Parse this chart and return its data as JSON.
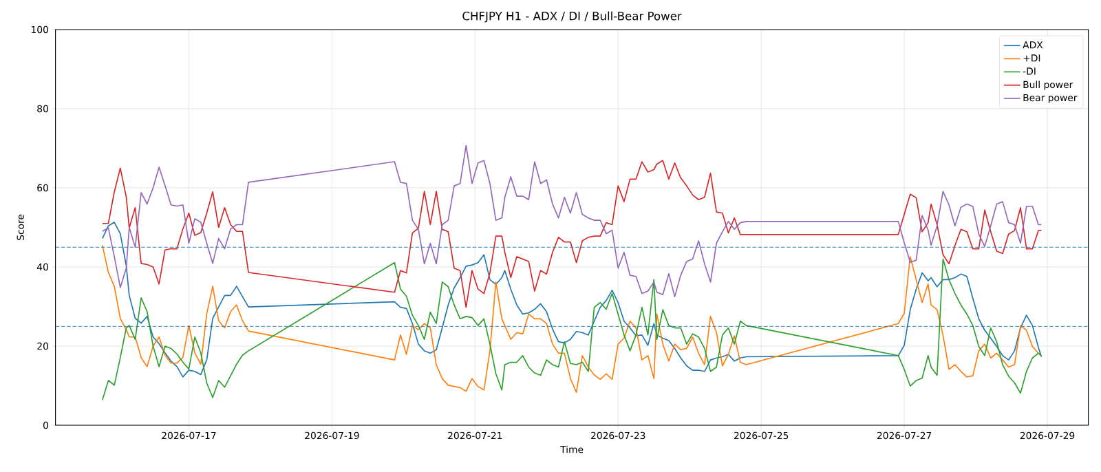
{
  "chart_data": {
    "type": "line",
    "title": "CHFJPY H1 - ADX / DI / Bull-Bear Power",
    "xlabel": "Time",
    "ylabel": "Score",
    "x": [
      "2026-07-15T19:00",
      "2026-07-15T21:00",
      "2026-07-15T23:00",
      "2026-07-16T01:00",
      "2026-07-16T03:00",
      "2026-07-16T04:00",
      "2026-07-16T06:00",
      "2026-07-16T08:00",
      "2026-07-16T10:00",
      "2026-07-16T12:00",
      "2026-07-16T14:00",
      "2026-07-16T16:00",
      "2026-07-16T18:00",
      "2026-07-16T20:00",
      "2026-07-16T22:00",
      "2026-07-17T00:00",
      "2026-07-17T02:00",
      "2026-07-17T04:00",
      "2026-07-17T06:00",
      "2026-07-17T08:00",
      "2026-07-17T10:00",
      "2026-07-17T12:00",
      "2026-07-17T14:00",
      "2026-07-17T16:00",
      "2026-07-17T18:00",
      "2026-07-17T20:00",
      "2026-07-19T21:00",
      "2026-07-19T23:00",
      "2026-07-20T01:00",
      "2026-07-20T03:00",
      "2026-07-20T05:00",
      "2026-07-20T07:00",
      "2026-07-20T09:00",
      "2026-07-20T11:00",
      "2026-07-20T13:00",
      "2026-07-20T15:00",
      "2026-07-20T17:00",
      "2026-07-20T19:00",
      "2026-07-20T21:00",
      "2026-07-20T23:00",
      "2026-07-21T01:00",
      "2026-07-21T03:00",
      "2026-07-21T05:00",
      "2026-07-21T07:00",
      "2026-07-21T09:00",
      "2026-07-21T10:00",
      "2026-07-21T12:00",
      "2026-07-21T14:00",
      "2026-07-21T16:00",
      "2026-07-21T18:00",
      "2026-07-21T20:00",
      "2026-07-21T22:00",
      "2026-07-22T00:00",
      "2026-07-22T02:00",
      "2026-07-22T04:00",
      "2026-07-22T06:00",
      "2026-07-22T08:00",
      "2026-07-22T10:00",
      "2026-07-22T12:00",
      "2026-07-22T14:00",
      "2026-07-22T16:00",
      "2026-07-22T18:00",
      "2026-07-22T20:00",
      "2026-07-22T22:00",
      "2026-07-23T00:00",
      "2026-07-23T02:00",
      "2026-07-23T04:00",
      "2026-07-23T06:00",
      "2026-07-23T08:00",
      "2026-07-23T10:00",
      "2026-07-23T12:00",
      "2026-07-23T13:00",
      "2026-07-23T15:00",
      "2026-07-23T17:00",
      "2026-07-23T19:00",
      "2026-07-23T21:00",
      "2026-07-23T23:00",
      "2026-07-24T01:00",
      "2026-07-24T03:00",
      "2026-07-24T05:00",
      "2026-07-24T07:00",
      "2026-07-24T09:00",
      "2026-07-24T11:00",
      "2026-07-24T13:00",
      "2026-07-24T15:00",
      "2026-07-24T17:00",
      "2026-07-24T19:00",
      "2026-07-26T22:00",
      "2026-07-27T00:00",
      "2026-07-27T02:00",
      "2026-07-27T04:00",
      "2026-07-27T06:00",
      "2026-07-27T08:00",
      "2026-07-27T09:00",
      "2026-07-27T11:00",
      "2026-07-27T13:00",
      "2026-07-27T15:00",
      "2026-07-27T17:00",
      "2026-07-27T19:00",
      "2026-07-27T21:00",
      "2026-07-27T23:00",
      "2026-07-28T01:00",
      "2026-07-28T03:00",
      "2026-07-28T05:00",
      "2026-07-28T07:00",
      "2026-07-28T09:00",
      "2026-07-28T11:00",
      "2026-07-28T13:00",
      "2026-07-28T15:00",
      "2026-07-28T17:00",
      "2026-07-28T19:00",
      "2026-07-28T21:00",
      "2026-07-28T22:00"
    ],
    "series": [
      {
        "name": "ADX",
        "color": "#1f77b4",
        "values": [
          47.2,
          50.4,
          51.3,
          48.4,
          40.3,
          32.8,
          27,
          25.8,
          27.5,
          22.3,
          20.6,
          18.3,
          16.2,
          14.8,
          12.2,
          13.9,
          13.6,
          12.8,
          16.5,
          27,
          29.9,
          32.8,
          32.8,
          35.1,
          32.5,
          29.9,
          31.2,
          29.8,
          29.5,
          25.7,
          20.5,
          18.8,
          18.2,
          19.1,
          24.6,
          30.4,
          34.7,
          37.3,
          40.2,
          40.5,
          41.1,
          43.1,
          36.8,
          35.6,
          37.3,
          39.1,
          34.4,
          30.4,
          28.1,
          28.4,
          29.3,
          30.7,
          28.7,
          24.3,
          21.1,
          20.8,
          21.7,
          23.7,
          23.4,
          22.8,
          26.3,
          29.8,
          31.5,
          34.1,
          31,
          26.3,
          24.6,
          22.6,
          22.8,
          20.2,
          25.7,
          22.8,
          22,
          21.4,
          19.4,
          17,
          15,
          13.9,
          13.9,
          13.6,
          16.5,
          17,
          17.3,
          17.9,
          16.2,
          17,
          17.3,
          17.6,
          20.2,
          29.2,
          34.4,
          38.5,
          36.5,
          37.3,
          35,
          36.8,
          36.8,
          37.3,
          38.2,
          37.6,
          32.1,
          26.9,
          24,
          22,
          19.9,
          17.6,
          16.5,
          18.8,
          24.6,
          27.8,
          25.2,
          19.7,
          17.3
        ]
      },
      {
        "name": "+DI",
        "color": "#ff7f0e",
        "values": [
          45.5,
          38.6,
          35.1,
          27,
          24.1,
          22.3,
          22.3,
          17.1,
          14.8,
          20,
          22.3,
          17.7,
          15.7,
          15.7,
          17.1,
          25.2,
          18.3,
          15.4,
          28.1,
          35.1,
          26.4,
          24.6,
          28.7,
          30.4,
          26.4,
          23.8,
          16.5,
          22.8,
          17.9,
          25.2,
          24.1,
          25.7,
          24.6,
          15.3,
          11.8,
          10.1,
          9.8,
          9.5,
          8.6,
          11.8,
          9.8,
          8.9,
          18.8,
          36.2,
          26.9,
          25.2,
          21.7,
          23.4,
          23.1,
          28.1,
          26.9,
          26.9,
          25.7,
          20.5,
          18.2,
          18.2,
          11.8,
          8.3,
          17.6,
          14.7,
          12.7,
          11.6,
          13,
          11.6,
          20.5,
          22,
          26.3,
          24.6,
          16.5,
          17.6,
          11.8,
          28.1,
          20.5,
          16.2,
          20.5,
          19.1,
          19.4,
          22.3,
          18.2,
          15.3,
          27.5,
          23.4,
          15,
          17.9,
          22.6,
          15.9,
          15.3,
          25.7,
          28.3,
          42.6,
          36.8,
          31,
          35.7,
          30.4,
          29.2,
          22.8,
          14.1,
          15.3,
          13.6,
          12.2,
          12.5,
          18.8,
          20.5,
          17,
          18.2,
          16.5,
          14.7,
          15.3,
          25.2,
          24,
          19.9,
          18.2,
          17.6
        ]
      },
      {
        "name": "-DI",
        "color": "#2ca02c",
        "values": [
          6.4,
          11.3,
          10.1,
          17.1,
          24.6,
          25.2,
          21.7,
          32.2,
          28.7,
          20,
          14.8,
          20,
          19.4,
          18,
          15.9,
          14.2,
          22.3,
          18.3,
          10.7,
          7,
          11.3,
          9.6,
          12.5,
          15.4,
          17.7,
          18.8,
          41.1,
          34.4,
          32.6,
          27.8,
          25.2,
          21.7,
          28.6,
          25.7,
          36.2,
          35,
          30.4,
          26.9,
          27.5,
          27.2,
          25.2,
          26.9,
          20.5,
          13,
          8.9,
          15.3,
          15.9,
          15.9,
          17.6,
          14.7,
          13.2,
          12.6,
          16.5,
          15.3,
          14.7,
          21.1,
          15.6,
          15.3,
          15.9,
          13.6,
          29.8,
          31,
          29.3,
          33.3,
          28.1,
          22.8,
          18.8,
          22.8,
          29.8,
          22.8,
          36.8,
          21.7,
          29.2,
          25.2,
          24.6,
          24.6,
          20.5,
          23.1,
          22.3,
          19.4,
          13.6,
          14.7,
          22.8,
          24.6,
          20.5,
          26.3,
          25.2,
          17.6,
          14.1,
          9.9,
          11.3,
          11.9,
          17.6,
          14.7,
          12.6,
          42,
          36.8,
          33.3,
          30.4,
          28.1,
          25.2,
          19.9,
          17.6,
          24.6,
          21.1,
          15.3,
          12.4,
          10.7,
          8.1,
          13.6,
          17,
          18.2,
          17.6
        ]
      },
      {
        "name": "Bull power",
        "color": "#d62728",
        "values": [
          51,
          51,
          59,
          65,
          57.7,
          49.9,
          55,
          40.9,
          40.6,
          40,
          35.7,
          44.3,
          44.6,
          44.6,
          49.6,
          53.6,
          48,
          48.7,
          53.6,
          59,
          50,
          55,
          50.7,
          49,
          49,
          38.6,
          33.6,
          39.1,
          38.5,
          48.6,
          49.8,
          59.1,
          50.7,
          59.1,
          49.5,
          48.9,
          39.7,
          39.1,
          29.8,
          39.1,
          34.4,
          33.3,
          38.5,
          47.8,
          47.8,
          43.7,
          37.3,
          42.6,
          42,
          41.4,
          33.9,
          39.1,
          38.2,
          43.7,
          47.5,
          46.3,
          46.3,
          41.1,
          46.6,
          47.5,
          47.8,
          47.8,
          51.2,
          50.7,
          60.5,
          56.5,
          62.2,
          62.2,
          66.6,
          64,
          64.6,
          66,
          66.9,
          62.2,
          66.3,
          62.5,
          60.5,
          58.2,
          57,
          57.6,
          63.7,
          53.9,
          53.6,
          48.6,
          52.4,
          48.2,
          48.2,
          48.2,
          53.3,
          58.4,
          57.5,
          48.9,
          51.2,
          55.9,
          50.7,
          43.1,
          40.8,
          45.4,
          49.5,
          48.9,
          44.6,
          44.6,
          54.4,
          48.9,
          44,
          43.4,
          48.3,
          49.2,
          55,
          44.6,
          44.6,
          49.2,
          49.2
        ]
      },
      {
        "name": "Bear power",
        "color": "#9467bd",
        "values": [
          49,
          49.9,
          42.6,
          34.8,
          39.7,
          50,
          45,
          58.8,
          55.9,
          60,
          65.2,
          60.6,
          55.7,
          55.4,
          55.7,
          46,
          52.2,
          51.3,
          46,
          40.9,
          47.2,
          44.6,
          49.6,
          50.7,
          50.7,
          61.4,
          66.6,
          61.4,
          61.1,
          51.8,
          49.5,
          40.8,
          46,
          40.8,
          50.7,
          51.8,
          60.5,
          61.1,
          70.7,
          61.1,
          66.3,
          66.9,
          61.1,
          51.8,
          52.4,
          57.6,
          62.8,
          57.9,
          57.9,
          57,
          66.6,
          61.1,
          62,
          55.9,
          52.4,
          57.6,
          53.6,
          58.8,
          53.3,
          52.4,
          51.8,
          51.8,
          48.4,
          49.3,
          39.7,
          43.7,
          37.9,
          37.6,
          33.3,
          33.9,
          36.2,
          33.6,
          33,
          38.3,
          32.5,
          37.9,
          41.4,
          42,
          46.6,
          40.8,
          36.2,
          46,
          48.9,
          51.5,
          49.5,
          51.2,
          51.5,
          51.5,
          46.1,
          41.2,
          41.7,
          53,
          49.3,
          45.5,
          50.4,
          59.1,
          55.7,
          50.4,
          55.1,
          55.9,
          55.3,
          48.3,
          45.2,
          50.4,
          55.9,
          56.5,
          51.2,
          50.7,
          46,
          55.3,
          55.3,
          50.7,
          50.7
        ]
      }
    ],
    "xlim": [
      "2026-07-15T03:15",
      "2026-07-29T13:45"
    ],
    "xticks": [
      "2026-07-17",
      "2026-07-19",
      "2026-07-21",
      "2026-07-23",
      "2026-07-25",
      "2026-07-27",
      "2026-07-29"
    ],
    "ylim": [
      0,
      100
    ],
    "yticks": [
      0,
      20,
      40,
      60,
      80,
      100
    ],
    "ref_lines": [
      {
        "axis": "y",
        "value": 45,
        "color": "#1f77b4",
        "line_style": "dashed"
      },
      {
        "axis": "y",
        "value": 25,
        "color": "#1f77b4",
        "line_style": "dashed"
      }
    ],
    "grid": true,
    "legend": "top right"
  }
}
